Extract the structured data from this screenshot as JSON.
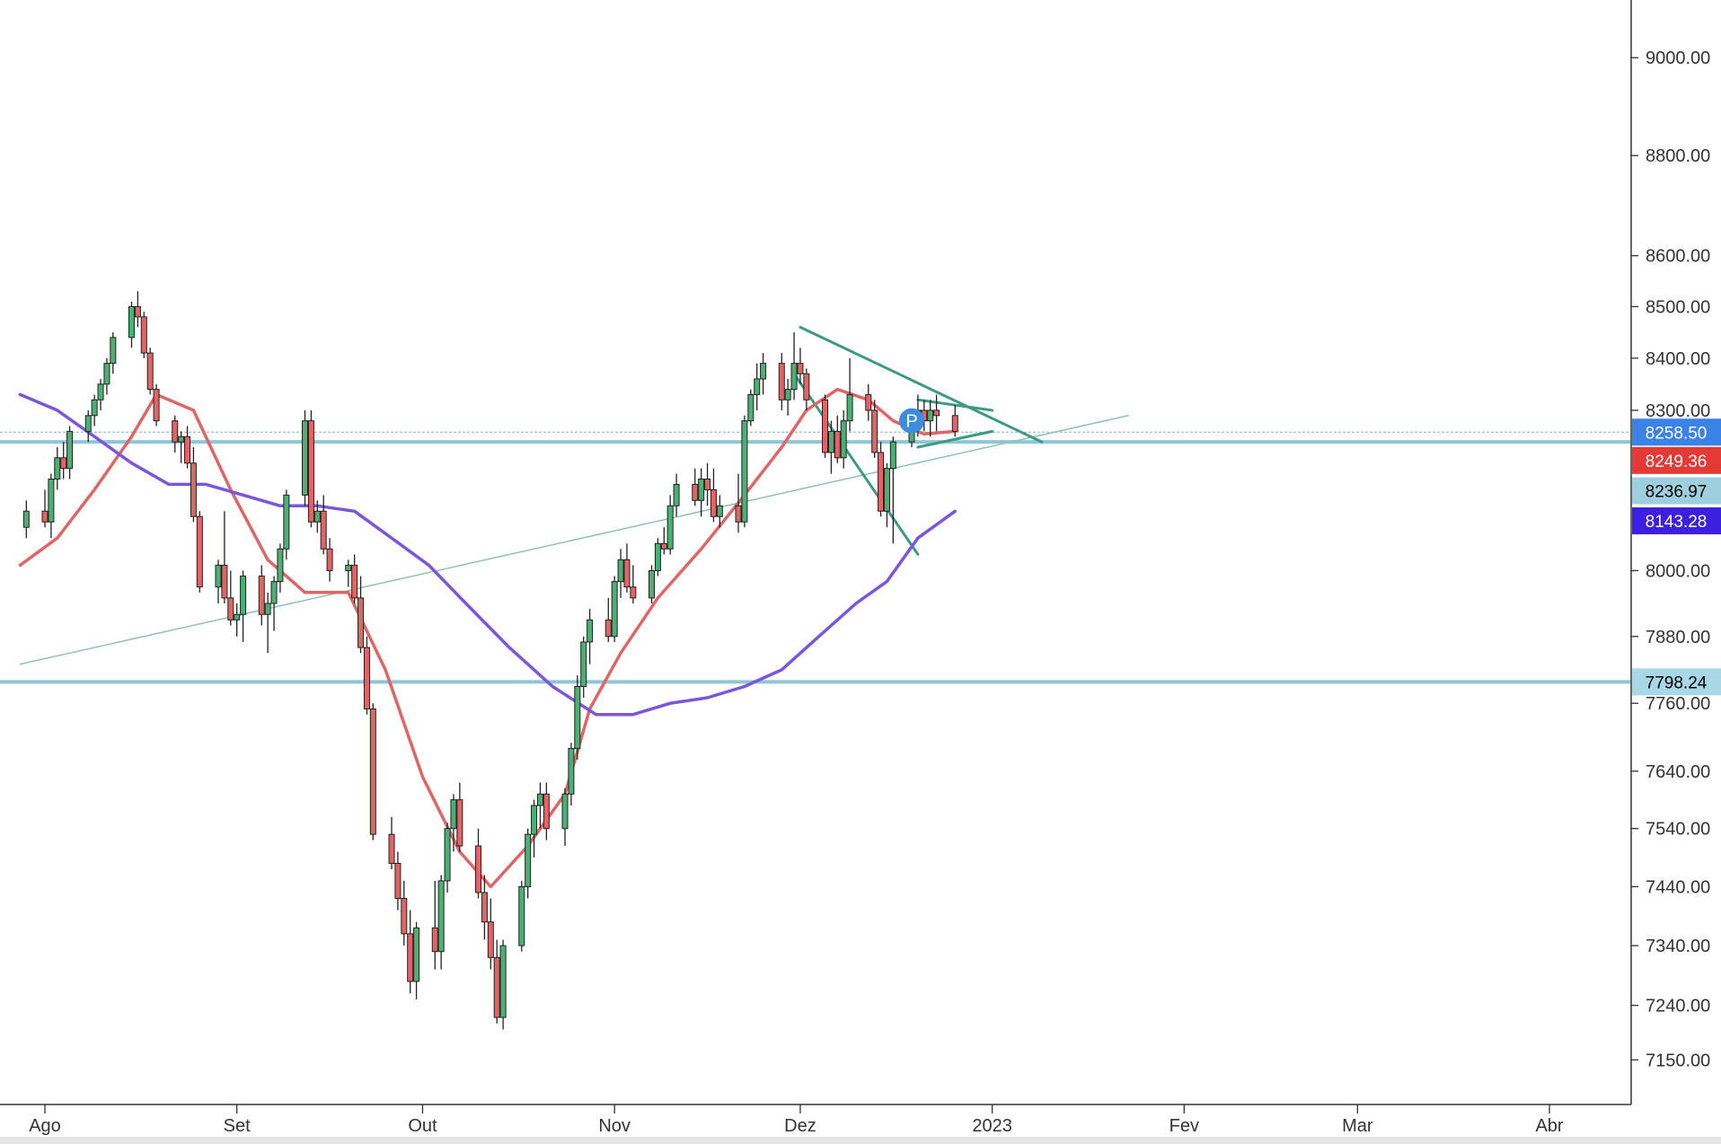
{
  "chart_data": {
    "type": "candlestick",
    "x_axis": {
      "labels": [
        {
          "text": "Ago",
          "date": "2022-08-01"
        },
        {
          "text": "Set",
          "date": "2022-09-01"
        },
        {
          "text": "Out",
          "date": "2022-10-01"
        },
        {
          "text": "Nov",
          "date": "2022-11-01"
        },
        {
          "text": "Dez",
          "date": "2022-12-01"
        },
        {
          "text": "2023",
          "date": "2023-01-01"
        },
        {
          "text": "Fev",
          "date": "2023-02-01"
        },
        {
          "text": "Mar",
          "date": "2023-03-01"
        },
        {
          "text": "Abr",
          "date": "2023-04-01"
        }
      ]
    },
    "y_axis": {
      "scale": "log",
      "range": [
        7080,
        9120
      ],
      "ticks": [
        "9000.00",
        "8800.00",
        "8600.00",
        "8500.00",
        "8400.00",
        "8300.00",
        "8000.00",
        "7880.00",
        "7760.00",
        "7640.00",
        "7540.00",
        "7440.00",
        "7340.00",
        "7240.00",
        "7150.00"
      ]
    },
    "price_tags": [
      {
        "label": "8258.50",
        "value": 8258.5,
        "bg": "#3b82e6",
        "fg": "#ffffff"
      },
      {
        "label": "8249.36",
        "value": 8205,
        "bg": "#e53935",
        "fg": "#ffffff"
      },
      {
        "label": "8236.97",
        "value": 8148,
        "bg": "#9ecfde",
        "fg": "#000000"
      },
      {
        "label": "8143.28",
        "value": 8092,
        "bg": "#3d1fe0",
        "fg": "#ffffff"
      },
      {
        "label": "7798.24",
        "value": 7798.24,
        "bg": "#a8d8e6",
        "fg": "#000000"
      }
    ],
    "horizontal_lines": [
      {
        "value": 8258.5,
        "color": "#7ab6c9",
        "width": 1,
        "dash": "3,2"
      },
      {
        "value": 8240,
        "color": "#8cc6d8",
        "width": 4
      },
      {
        "value": 7798.24,
        "color": "#8cc6d8",
        "width": 4
      }
    ],
    "candles": [
      [
        "2022-07-29",
        8080,
        8130,
        8060,
        8110
      ],
      [
        "2022-08-01",
        8110,
        8150,
        8080,
        8090
      ],
      [
        "2022-08-02",
        8090,
        8180,
        8060,
        8170
      ],
      [
        "2022-08-03",
        8170,
        8230,
        8150,
        8210
      ],
      [
        "2022-08-04",
        8210,
        8240,
        8170,
        8190
      ],
      [
        "2022-08-05",
        8190,
        8270,
        8170,
        8260
      ],
      [
        "2022-08-08",
        8260,
        8300,
        8240,
        8290
      ],
      [
        "2022-08-09",
        8290,
        8330,
        8270,
        8320
      ],
      [
        "2022-08-10",
        8320,
        8360,
        8300,
        8350
      ],
      [
        "2022-08-11",
        8350,
        8400,
        8330,
        8390
      ],
      [
        "2022-08-12",
        8390,
        8450,
        8370,
        8440
      ],
      [
        "2022-08-15",
        8440,
        8510,
        8420,
        8500
      ],
      [
        "2022-08-16",
        8500,
        8530,
        8460,
        8480
      ],
      [
        "2022-08-17",
        8480,
        8490,
        8400,
        8410
      ],
      [
        "2022-08-18",
        8410,
        8420,
        8330,
        8340
      ],
      [
        "2022-08-19",
        8340,
        8350,
        8270,
        8280
      ],
      [
        "2022-08-22",
        8280,
        8290,
        8220,
        8240
      ],
      [
        "2022-08-23",
        8240,
        8260,
        8200,
        8250
      ],
      [
        "2022-08-24",
        8250,
        8270,
        8190,
        8200
      ],
      [
        "2022-08-25",
        8200,
        8230,
        8090,
        8100
      ],
      [
        "2022-08-26",
        8100,
        8110,
        7960,
        7970
      ],
      [
        "2022-08-29",
        7970,
        8020,
        7940,
        8010
      ],
      [
        "2022-08-30",
        8010,
        8110,
        7940,
        7950
      ],
      [
        "2022-08-31",
        7950,
        8000,
        7900,
        7910
      ],
      [
        "2022-09-01",
        7910,
        7940,
        7880,
        7920
      ],
      [
        "2022-09-02",
        7920,
        8000,
        7870,
        7990
      ],
      [
        "2022-09-05",
        7990,
        8010,
        7900,
        7920
      ],
      [
        "2022-09-06",
        7920,
        7960,
        7850,
        7940
      ],
      [
        "2022-09-07",
        7940,
        7990,
        7890,
        7980
      ],
      [
        "2022-09-08",
        7980,
        8050,
        7960,
        8040
      ],
      [
        "2022-09-09",
        8040,
        8150,
        8020,
        8140
      ],
      [
        "2022-09-12",
        8140,
        8300,
        8120,
        8280
      ],
      [
        "2022-09-13",
        8280,
        8300,
        8080,
        8090
      ],
      [
        "2022-09-14",
        8090,
        8130,
        8070,
        8110
      ],
      [
        "2022-09-15",
        8110,
        8140,
        8030,
        8040
      ],
      [
        "2022-09-16",
        8040,
        8060,
        7980,
        8000
      ],
      [
        "2022-09-19",
        8000,
        8020,
        7970,
        8010
      ],
      [
        "2022-09-20",
        8010,
        8030,
        7940,
        7950
      ],
      [
        "2022-09-21",
        7950,
        7990,
        7850,
        7860
      ],
      [
        "2022-09-22",
        7860,
        7880,
        7740,
        7750
      ],
      [
        "2022-09-23",
        7750,
        7760,
        7520,
        7530
      ],
      [
        "2022-09-26",
        7530,
        7560,
        7470,
        7480
      ],
      [
        "2022-09-27",
        7480,
        7500,
        7400,
        7420
      ],
      [
        "2022-09-28",
        7420,
        7450,
        7340,
        7360
      ],
      [
        "2022-09-29",
        7360,
        7400,
        7260,
        7280
      ],
      [
        "2022-09-30",
        7280,
        7380,
        7250,
        7370
      ],
      [
        "2022-10-03",
        7370,
        7450,
        7300,
        7330
      ],
      [
        "2022-10-04",
        7330,
        7460,
        7300,
        7450
      ],
      [
        "2022-10-05",
        7450,
        7550,
        7430,
        7540
      ],
      [
        "2022-10-06",
        7540,
        7600,
        7500,
        7590
      ],
      [
        "2022-10-07",
        7590,
        7620,
        7500,
        7510
      ],
      [
        "2022-10-10",
        7510,
        7540,
        7420,
        7430
      ],
      [
        "2022-10-11",
        7430,
        7460,
        7350,
        7380
      ],
      [
        "2022-10-12",
        7380,
        7420,
        7300,
        7320
      ],
      [
        "2022-10-13",
        7320,
        7350,
        7210,
        7220
      ],
      [
        "2022-10-14",
        7220,
        7350,
        7200,
        7340
      ],
      [
        "2022-10-17",
        7340,
        7450,
        7330,
        7440
      ],
      [
        "2022-10-18",
        7440,
        7540,
        7420,
        7530
      ],
      [
        "2022-10-19",
        7530,
        7590,
        7490,
        7580
      ],
      [
        "2022-10-20",
        7580,
        7620,
        7540,
        7600
      ],
      [
        "2022-10-21",
        7600,
        7620,
        7520,
        7540
      ],
      [
        "2022-10-24",
        7540,
        7610,
        7510,
        7600
      ],
      [
        "2022-10-25",
        7600,
        7690,
        7580,
        7680
      ],
      [
        "2022-10-26",
        7680,
        7810,
        7660,
        7790
      ],
      [
        "2022-10-27",
        7790,
        7880,
        7770,
        7870
      ],
      [
        "2022-10-28",
        7870,
        7930,
        7830,
        7910
      ],
      [
        "2022-10-31",
        7910,
        7950,
        7870,
        7880
      ],
      [
        "2022-11-01",
        7880,
        7990,
        7870,
        7980
      ],
      [
        "2022-11-02",
        7980,
        8040,
        7950,
        8020
      ],
      [
        "2022-11-03",
        8020,
        8050,
        7960,
        7970
      ],
      [
        "2022-11-04",
        7970,
        8010,
        7940,
        7950
      ],
      [
        "2022-11-07",
        7950,
        8010,
        7940,
        8000
      ],
      [
        "2022-11-08",
        8000,
        8060,
        7990,
        8050
      ],
      [
        "2022-11-09",
        8050,
        8080,
        8030,
        8040
      ],
      [
        "2022-11-10",
        8040,
        8140,
        8030,
        8120
      ],
      [
        "2022-11-11",
        8120,
        8180,
        8100,
        8160
      ],
      [
        "2022-11-14",
        8160,
        8190,
        8120,
        8130
      ],
      [
        "2022-11-15",
        8130,
        8190,
        8100,
        8170
      ],
      [
        "2022-11-16",
        8170,
        8200,
        8120,
        8150
      ],
      [
        "2022-11-17",
        8150,
        8190,
        8090,
        8100
      ],
      [
        "2022-11-18",
        8100,
        8140,
        8080,
        8120
      ],
      [
        "2022-11-21",
        8120,
        8180,
        8070,
        8090
      ],
      [
        "2022-11-22",
        8090,
        8290,
        8080,
        8280
      ],
      [
        "2022-11-23",
        8280,
        8340,
        8270,
        8330
      ],
      [
        "2022-11-24",
        8330,
        8390,
        8300,
        8360
      ],
      [
        "2022-11-25",
        8360,
        8410,
        8330,
        8390
      ],
      [
        "2022-11-28",
        8390,
        8410,
        8300,
        8320
      ],
      [
        "2022-11-29",
        8320,
        8360,
        8290,
        8340
      ],
      [
        "2022-11-30",
        8340,
        8450,
        8320,
        8390
      ],
      [
        "2022-12-01",
        8390,
        8420,
        8350,
        8370
      ],
      [
        "2022-12-02",
        8370,
        8380,
        8300,
        8320
      ],
      [
        "2022-12-05",
        8320,
        8330,
        8210,
        8220
      ],
      [
        "2022-12-06",
        8220,
        8280,
        8180,
        8260
      ],
      [
        "2022-12-07",
        8260,
        8290,
        8200,
        8210
      ],
      [
        "2022-12-08",
        8210,
        8300,
        8190,
        8280
      ],
      [
        "2022-12-09",
        8280,
        8400,
        8260,
        8330
      ],
      [
        "2022-12-12",
        8330,
        8350,
        8280,
        8300
      ],
      [
        "2022-12-13",
        8300,
        8320,
        8210,
        8220
      ],
      [
        "2022-12-14",
        8220,
        8240,
        8100,
        8110
      ],
      [
        "2022-12-15",
        8110,
        8200,
        8080,
        8190
      ],
      [
        "2022-12-16",
        8190,
        8250,
        8050,
        8240
      ],
      [
        "2022-12-19",
        8240,
        8290,
        8230,
        8270
      ],
      [
        "2022-12-20",
        8270,
        8330,
        8250,
        8300
      ],
      [
        "2022-12-21",
        8300,
        8320,
        8260,
        8280
      ],
      [
        "2022-12-22",
        8280,
        8320,
        8250,
        8300
      ],
      [
        "2022-12-23",
        8300,
        8330,
        8260,
        8290
      ],
      [
        "2022-12-26",
        8290,
        8310,
        8250,
        8260
      ]
    ],
    "indicators": [
      {
        "type": "moving_average",
        "color": "#e06666",
        "points": [
          [
            "2022-07-28",
            8010
          ],
          [
            "2022-08-03",
            8060
          ],
          [
            "2022-08-09",
            8150
          ],
          [
            "2022-08-15",
            8250
          ],
          [
            "2022-08-19",
            8330
          ],
          [
            "2022-08-25",
            8300
          ],
          [
            "2022-08-31",
            8150
          ],
          [
            "2022-09-06",
            8020
          ],
          [
            "2022-09-12",
            7960
          ],
          [
            "2022-09-19",
            7960
          ],
          [
            "2022-09-25",
            7820
          ],
          [
            "2022-10-01",
            7630
          ],
          [
            "2022-10-07",
            7500
          ],
          [
            "2022-10-12",
            7440
          ],
          [
            "2022-10-18",
            7510
          ],
          [
            "2022-10-24",
            7600
          ],
          [
            "2022-10-28",
            7750
          ],
          [
            "2022-11-02",
            7850
          ],
          [
            "2022-11-08",
            7950
          ],
          [
            "2022-11-15",
            8040
          ],
          [
            "2022-11-22",
            8140
          ],
          [
            "2022-11-28",
            8230
          ],
          [
            "2022-12-02",
            8300
          ],
          [
            "2022-12-07",
            8340
          ],
          [
            "2022-12-12",
            8320
          ],
          [
            "2022-12-16",
            8280
          ],
          [
            "2022-12-21",
            8255
          ],
          [
            "2022-12-26",
            8260
          ]
        ]
      },
      {
        "type": "moving_average",
        "color": "#7a56dd",
        "points": [
          [
            "2022-07-28",
            8330
          ],
          [
            "2022-08-03",
            8300
          ],
          [
            "2022-08-09",
            8250
          ],
          [
            "2022-08-15",
            8200
          ],
          [
            "2022-08-21",
            8160
          ],
          [
            "2022-08-27",
            8160
          ],
          [
            "2022-09-02",
            8140
          ],
          [
            "2022-09-08",
            8120
          ],
          [
            "2022-09-14",
            8120
          ],
          [
            "2022-09-20",
            8110
          ],
          [
            "2022-09-26",
            8060
          ],
          [
            "2022-10-02",
            8010
          ],
          [
            "2022-10-08",
            7940
          ],
          [
            "2022-10-15",
            7860
          ],
          [
            "2022-10-22",
            7790
          ],
          [
            "2022-10-29",
            7740
          ],
          [
            "2022-11-04",
            7740
          ],
          [
            "2022-11-10",
            7760
          ],
          [
            "2022-11-16",
            7770
          ],
          [
            "2022-11-22",
            7790
          ],
          [
            "2022-11-28",
            7820
          ],
          [
            "2022-12-04",
            7880
          ],
          [
            "2022-12-10",
            7940
          ],
          [
            "2022-12-15",
            7980
          ],
          [
            "2022-12-20",
            8060
          ],
          [
            "2022-12-26",
            8110
          ]
        ]
      }
    ],
    "trendlines": [
      {
        "color": "#8fc4b0",
        "width": 1.5,
        "from": [
          "2022-07-28",
          7830
        ],
        "to": [
          "2023-01-23",
          8290
        ]
      },
      {
        "color": "#3e9a7e",
        "width": 3,
        "from": [
          "2022-12-01",
          8460
        ],
        "to": [
          "2023-01-09",
          8240
        ]
      },
      {
        "color": "#3e9a7e",
        "width": 3,
        "from": [
          "2022-11-30",
          8370
        ],
        "to": [
          "2022-12-20",
          8030
        ]
      },
      {
        "color": "#3e9a7e",
        "width": 3,
        "from": [
          "2022-12-20",
          8320
        ],
        "to": [
          "2023-01-01",
          8300
        ]
      },
      {
        "color": "#3e9a7e",
        "width": 3,
        "from": [
          "2022-12-20",
          8230
        ],
        "to": [
          "2023-01-01",
          8260
        ]
      }
    ],
    "markers": [
      {
        "label": "P",
        "date": "2022-12-19",
        "value": 8280,
        "color": "#3b8de0",
        "text_color": "#ffffff"
      }
    ],
    "colors": {
      "up": "#4caf73",
      "down": "#e06666",
      "wick": "#222222",
      "axis": "#333333"
    }
  }
}
